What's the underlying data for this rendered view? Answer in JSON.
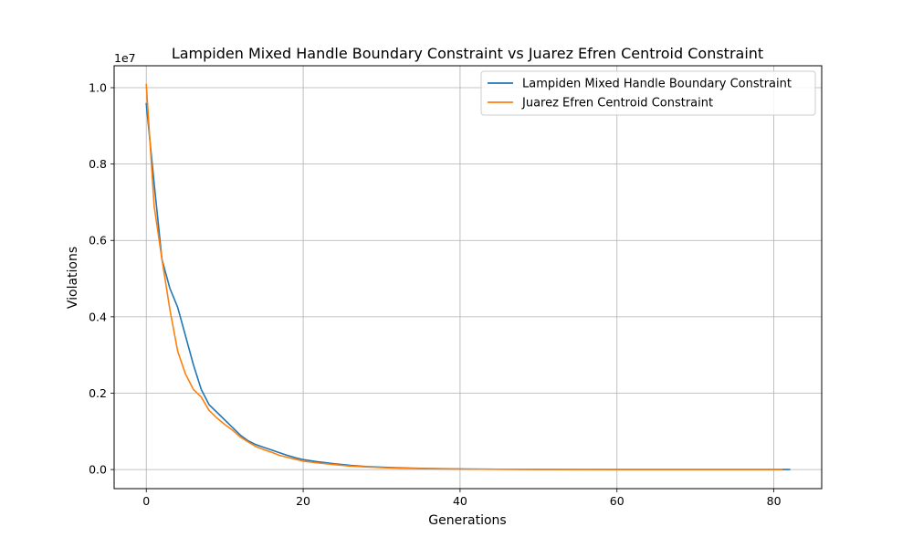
{
  "chart_data": {
    "type": "line",
    "title": "Lampiden Mixed Handle Boundary Constraint vs Juarez Efren Centroid Constraint",
    "xlabel": "Generations",
    "ylabel": "Violations",
    "y_offset_label": "1e7",
    "xlim": [
      -4.1,
      86.1
    ],
    "ylim": [
      -0.05,
      1.0574
    ],
    "x_ticks": [
      0,
      20,
      40,
      60,
      80
    ],
    "y_ticks": [
      0.0,
      0.2,
      0.4,
      0.6,
      0.8,
      1.0
    ],
    "x_tick_labels": [
      "0",
      "20",
      "40",
      "60",
      "80"
    ],
    "y_tick_labels": [
      "0.0",
      "0.2",
      "0.4",
      "0.6",
      "0.8",
      "1.0"
    ],
    "grid": true,
    "legend_position": "top-right",
    "series": [
      {
        "name": "Lampiden Mixed Handle Boundary Constraint",
        "color": "#1f77b4",
        "x": [
          0,
          1,
          2,
          3,
          4,
          5,
          6,
          7,
          8,
          9,
          10,
          11,
          12,
          13,
          14,
          15,
          16,
          17,
          18,
          19,
          20,
          22,
          24,
          26,
          28,
          30,
          32,
          35,
          40,
          45,
          50,
          55,
          60,
          65,
          70,
          75,
          80,
          82
        ],
        "y": [
          0.958,
          0.75,
          0.55,
          0.475,
          0.425,
          0.35,
          0.275,
          0.21,
          0.17,
          0.15,
          0.13,
          0.11,
          0.09,
          0.075,
          0.065,
          0.058,
          0.051,
          0.044,
          0.037,
          0.031,
          0.026,
          0.02,
          0.015,
          0.011,
          0.008,
          0.006,
          0.0045,
          0.003,
          0.0015,
          0.0008,
          0.0004,
          0.0002,
          0.0001,
          5e-05,
          2e-05,
          1e-05,
          0.0,
          0.0
        ]
      },
      {
        "name": "Juarez Efren Centroid Constraint",
        "color": "#ff7f0e",
        "x": [
          0,
          1,
          2,
          3,
          4,
          5,
          6,
          7,
          8,
          9,
          10,
          11,
          12,
          13,
          14,
          15,
          16,
          17,
          18,
          19,
          20,
          22,
          24,
          26,
          28,
          30,
          32,
          35,
          40,
          45,
          50,
          55,
          60,
          65,
          70,
          75,
          80,
          81
        ],
        "y": [
          1.008,
          0.69,
          0.55,
          0.42,
          0.31,
          0.25,
          0.21,
          0.19,
          0.155,
          0.135,
          0.118,
          0.103,
          0.085,
          0.072,
          0.06,
          0.052,
          0.045,
          0.037,
          0.032,
          0.027,
          0.022,
          0.017,
          0.013,
          0.009,
          0.007,
          0.005,
          0.0035,
          0.0025,
          0.0012,
          0.0006,
          0.0003,
          0.00015,
          8e-05,
          4e-05,
          2e-05,
          1e-05,
          0.0,
          0.0
        ]
      }
    ]
  }
}
